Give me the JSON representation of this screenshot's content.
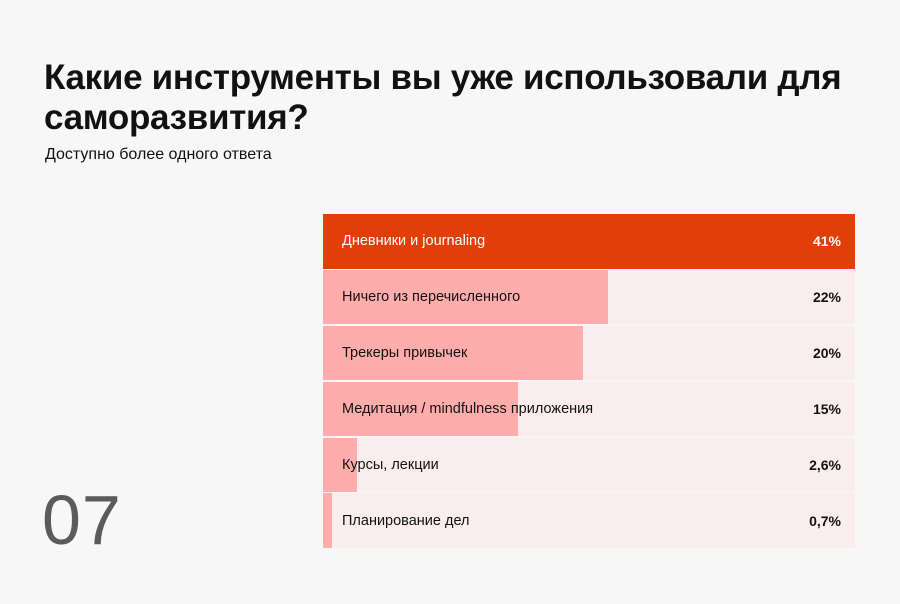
{
  "title": "Какие инструменты вы уже использовали для саморазвития?",
  "subtitle": "Доступно более одного ответа",
  "slide_number": "07",
  "colors": {
    "background": "#f7f7f7",
    "highlight_bar": "#e23e08",
    "bar": "#ffadac",
    "track": "#f9eeed"
  },
  "chart_data": {
    "type": "bar",
    "orientation": "horizontal",
    "title": "Какие инструменты вы уже использовали для саморазвития?",
    "subtitle": "Доступно более одного ответа",
    "categories": [
      "Дневники и journaling",
      "Ничего из перечисленного",
      "Трекеры привычек",
      "Медитация / mindfulness приложения",
      "Курсы, лекции",
      "Планирование дел"
    ],
    "values": [
      41,
      22,
      20,
      15,
      2.6,
      0.7
    ],
    "value_labels": [
      "41%",
      "22%",
      "20%",
      "15%",
      "2,6%",
      "0,7%"
    ],
    "unit": "%",
    "xlim": [
      0,
      41
    ],
    "highlight_index": 0,
    "grid": false,
    "legend": "none"
  }
}
